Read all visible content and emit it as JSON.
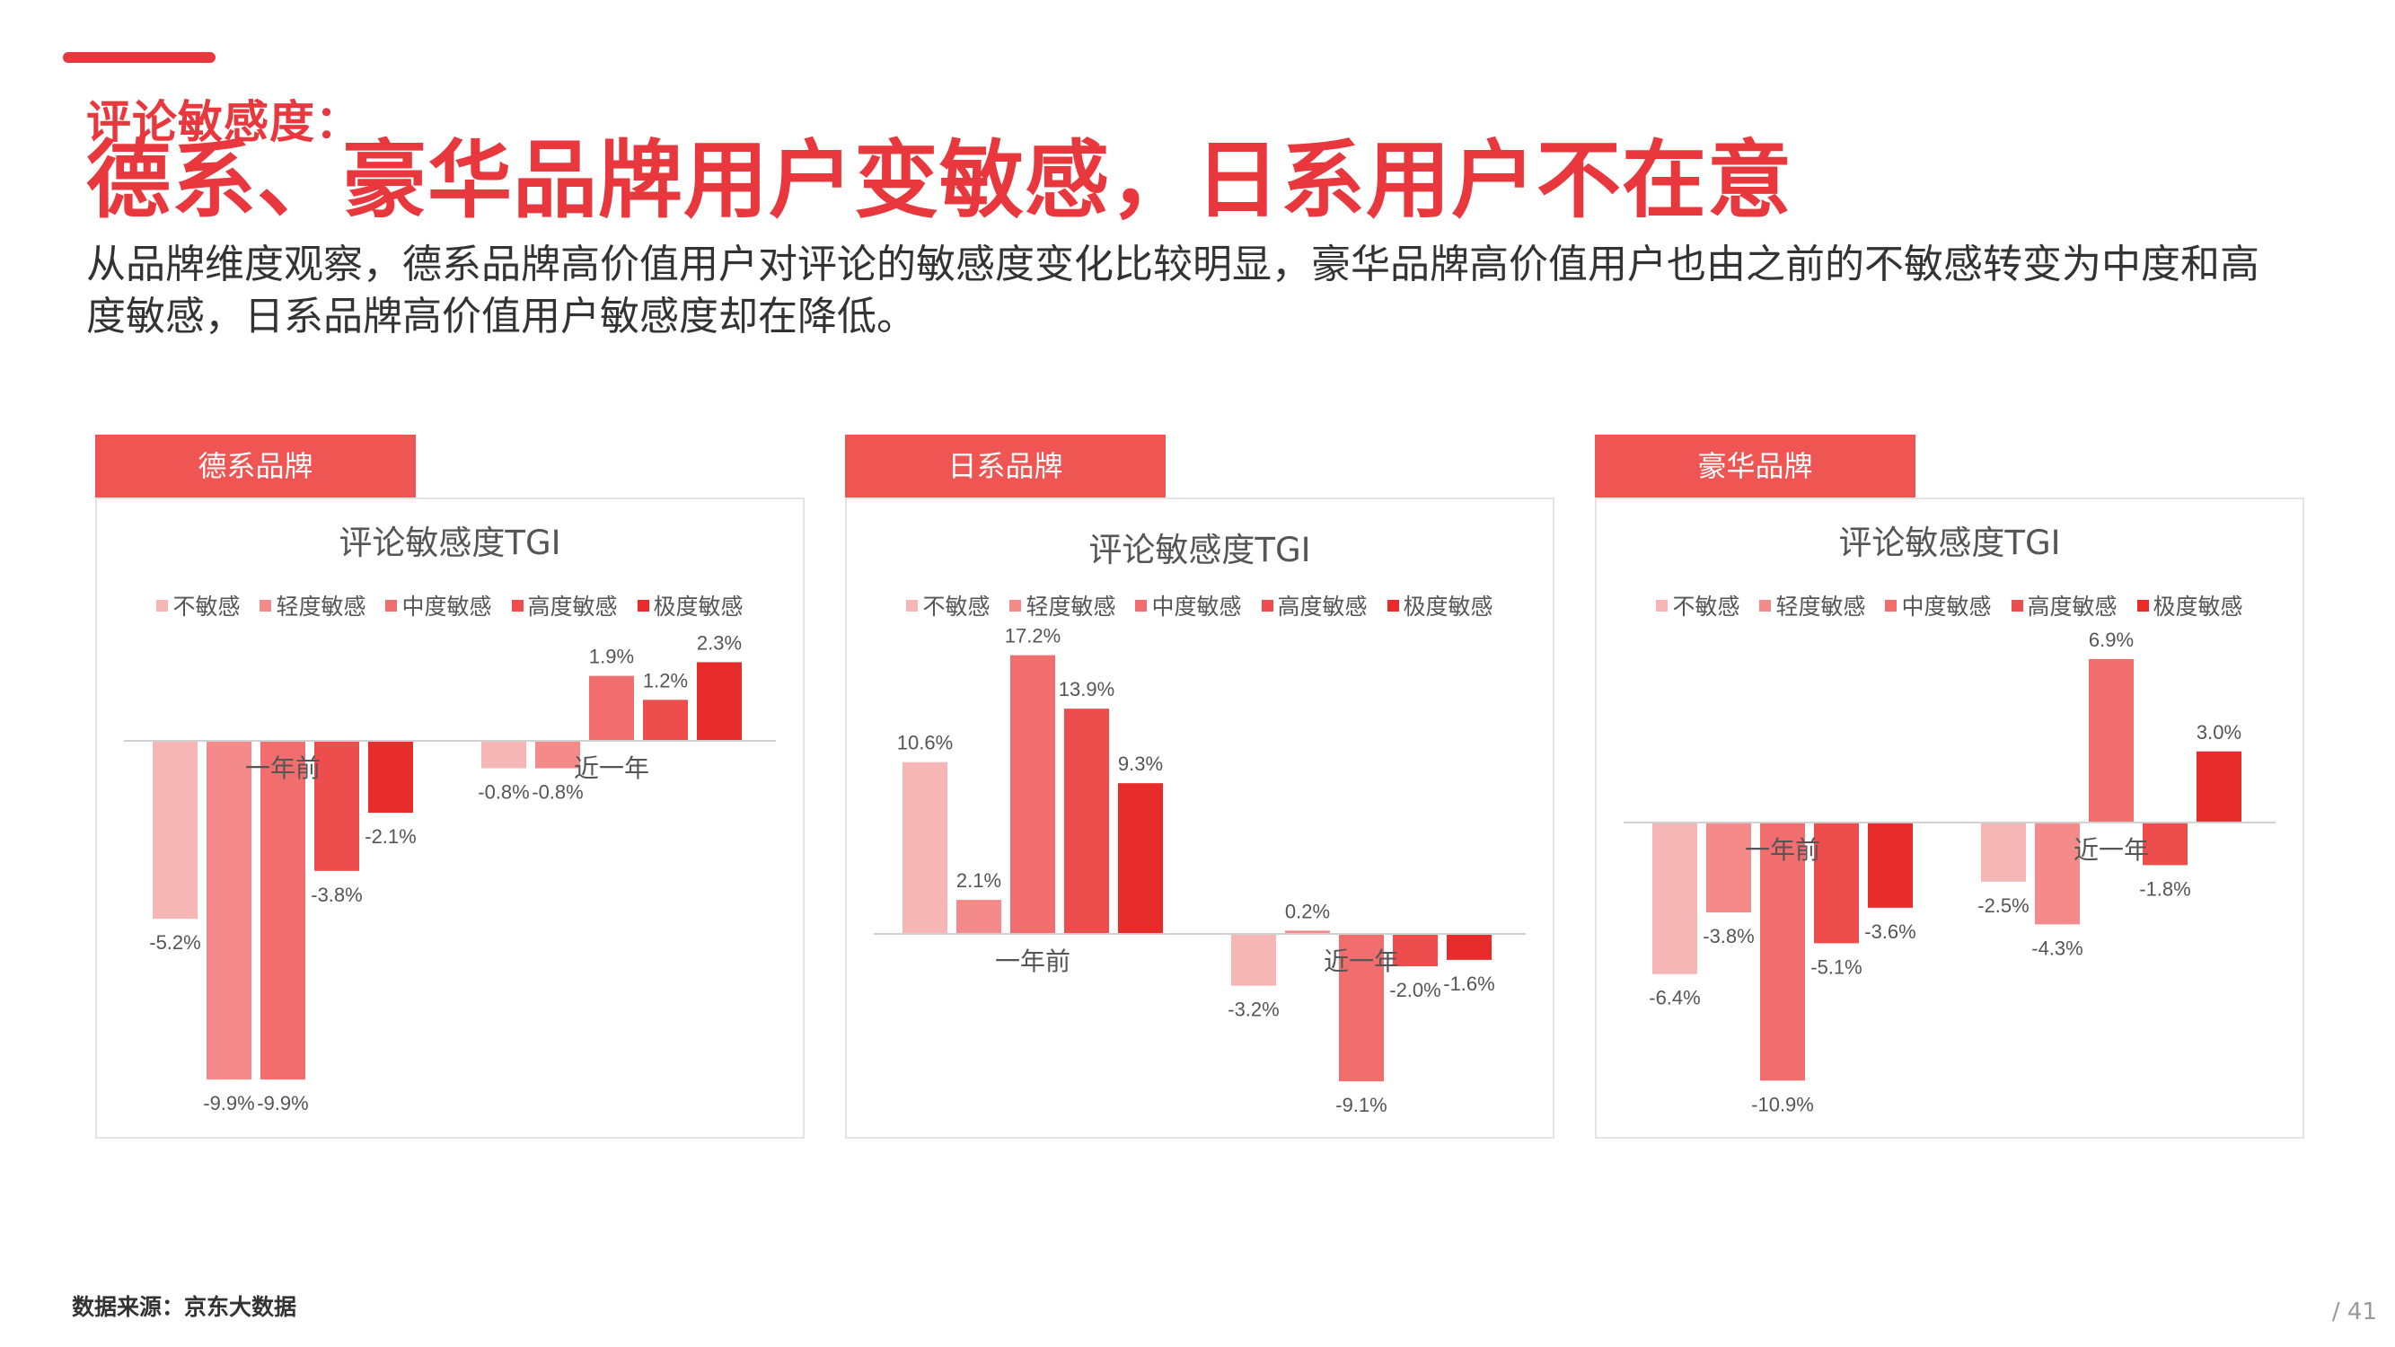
{
  "header": {
    "kicker": "评论敏感度：",
    "headline": "德系、豪华品牌用户变敏感，日系用户不在意",
    "description": "从品牌维度观察，德系品牌高价值用户对评论的敏感度变化比较明显，豪华品牌高价值用户也由之前的不敏感转变为中度和高度敏感，日系品牌高价值用户敏感度却在降低。"
  },
  "footer": {
    "source": "数据来源：京东大数据",
    "page": "/ 41"
  },
  "colors": {
    "accent": "#e8383d",
    "tab": "#ef5552",
    "series": [
      "#f7b6b6",
      "#f48a8a",
      "#f26d6d",
      "#ee4d4d",
      "#e82c2c"
    ]
  },
  "legend": [
    "不敏感",
    "轻度敏感",
    "中度敏感",
    "高度敏感",
    "极度敏感"
  ],
  "chart_data": [
    {
      "tab": "德系品牌",
      "type": "bar",
      "title": "评论敏感度TGI",
      "categories": [
        "一年前",
        "近一年"
      ],
      "ylim": [
        -10,
        2.6
      ],
      "series": [
        {
          "name": "不敏感",
          "values": [
            -5.2,
            -0.8
          ],
          "labels": [
            "-5.2%",
            "-0.8%"
          ]
        },
        {
          "name": "轻度敏感",
          "values": [
            -9.9,
            -0.8
          ],
          "labels": [
            "-9.9%",
            "-0.8%"
          ]
        },
        {
          "name": "中度敏感",
          "values": [
            -9.9,
            1.9
          ],
          "labels": [
            "-9.9%",
            "1.9%"
          ]
        },
        {
          "name": "高度敏感",
          "values": [
            -3.8,
            1.2
          ],
          "labels": [
            "-3.8%",
            "1.2%"
          ]
        },
        {
          "name": "极度敏感",
          "values": [
            -2.1,
            2.3
          ],
          "labels": [
            "-2.1%",
            "2.3%"
          ]
        }
      ]
    },
    {
      "tab": "日系品牌",
      "type": "bar",
      "title": "评论敏感度TGI",
      "categories": [
        "一年前",
        "近一年"
      ],
      "ylim": [
        -9.2,
        17.4
      ],
      "series": [
        {
          "name": "不敏感",
          "values": [
            10.6,
            -3.2
          ],
          "labels": [
            "10.6%",
            "-3.2%"
          ]
        },
        {
          "name": "轻度敏感",
          "values": [
            2.1,
            0.2
          ],
          "labels": [
            "2.1%",
            "0.2%"
          ]
        },
        {
          "name": "中度敏感",
          "values": [
            17.2,
            -9.1
          ],
          "labels": [
            "17.2%",
            "-9.1%"
          ]
        },
        {
          "name": "高度敏感",
          "values": [
            13.9,
            -2.0
          ],
          "labels": [
            "13.9%",
            "-2.0%"
          ]
        },
        {
          "name": "极度敏感",
          "values": [
            9.3,
            -1.6
          ],
          "labels": [
            "9.3%",
            "-1.6%"
          ]
        }
      ]
    },
    {
      "tab": "豪华品牌",
      "type": "bar",
      "title": "评论敏感度TGI",
      "categories": [
        "一年前",
        "近一年"
      ],
      "ylim": [
        -11,
        7.2
      ],
      "series": [
        {
          "name": "不敏感",
          "values": [
            -6.4,
            -2.5
          ],
          "labels": [
            "-6.4%",
            "-2.5%"
          ]
        },
        {
          "name": "轻度敏感",
          "values": [
            -3.8,
            -4.3
          ],
          "labels": [
            "-3.8%",
            "-4.3%"
          ]
        },
        {
          "name": "中度敏感",
          "values": [
            -10.9,
            6.9
          ],
          "labels": [
            "-10.9%",
            "6.9%"
          ]
        },
        {
          "name": "高度敏感",
          "values": [
            -5.1,
            -1.8
          ],
          "labels": [
            "-5.1%",
            "-1.8%"
          ]
        },
        {
          "name": "极度敏感",
          "values": [
            -3.6,
            3.0
          ],
          "labels": [
            "-3.6%",
            "3.0%"
          ]
        }
      ]
    }
  ]
}
